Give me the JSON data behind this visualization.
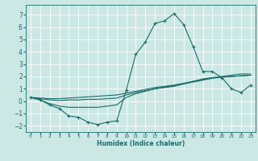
{
  "xlabel": "Humidex (Indice chaleur)",
  "bg_color": "#cce8e4",
  "grid_color": "#ffffff",
  "line_color": "#1a6b6b",
  "xlim": [
    -0.5,
    23.5
  ],
  "ylim": [
    -2.5,
    7.8
  ],
  "xticks": [
    0,
    1,
    2,
    3,
    4,
    5,
    6,
    7,
    8,
    9,
    10,
    11,
    12,
    13,
    14,
    15,
    16,
    17,
    18,
    19,
    20,
    21,
    22,
    23
  ],
  "yticks": [
    -2,
    -1,
    0,
    1,
    2,
    3,
    4,
    5,
    6,
    7
  ],
  "line1_x": [
    0,
    1,
    2,
    3,
    4,
    5,
    6,
    7,
    8,
    9,
    10,
    11,
    12,
    13,
    14,
    15,
    16,
    17,
    18,
    19,
    20,
    21,
    22,
    23
  ],
  "line1_y": [
    0.3,
    0.1,
    -0.3,
    -0.6,
    -1.2,
    -1.3,
    -1.7,
    -1.9,
    -1.7,
    -1.6,
    0.9,
    3.8,
    4.8,
    6.3,
    6.5,
    7.1,
    6.2,
    4.4,
    2.4,
    2.4,
    1.9,
    1.0,
    0.7,
    1.3
  ],
  "line2_x": [
    0,
    1,
    2,
    3,
    4,
    5,
    6,
    7,
    8,
    9,
    10,
    11,
    12,
    13,
    14,
    15,
    16,
    17,
    18,
    19,
    20,
    21,
    22,
    23
  ],
  "line2_y": [
    0.3,
    0.1,
    -0.2,
    -0.4,
    -0.5,
    -0.5,
    -0.5,
    -0.5,
    -0.4,
    -0.3,
    0.3,
    0.6,
    0.8,
    1.0,
    1.1,
    1.2,
    1.4,
    1.6,
    1.8,
    1.9,
    2.0,
    2.1,
    2.2,
    2.2
  ],
  "line3_x": [
    0,
    1,
    2,
    3,
    4,
    5,
    6,
    7,
    8,
    9,
    10,
    11,
    12,
    13,
    14,
    15,
    16,
    17,
    18,
    19,
    20,
    21,
    22,
    23
  ],
  "line3_y": [
    0.3,
    0.2,
    0.1,
    0.05,
    0.1,
    0.1,
    0.15,
    0.15,
    0.2,
    0.25,
    0.5,
    0.7,
    0.85,
    1.0,
    1.15,
    1.25,
    1.4,
    1.55,
    1.7,
    1.85,
    1.95,
    2.0,
    2.05,
    2.1
  ],
  "line4_x": [
    0,
    1,
    2,
    3,
    4,
    5,
    6,
    7,
    8,
    9,
    10,
    11,
    12,
    13,
    14,
    15,
    16,
    17,
    18,
    19,
    20,
    21,
    22,
    23
  ],
  "line4_y": [
    0.3,
    0.25,
    0.2,
    0.2,
    0.25,
    0.3,
    0.35,
    0.4,
    0.45,
    0.5,
    0.65,
    0.8,
    0.95,
    1.1,
    1.2,
    1.3,
    1.45,
    1.6,
    1.75,
    1.9,
    1.95,
    2.0,
    2.05,
    2.1
  ]
}
